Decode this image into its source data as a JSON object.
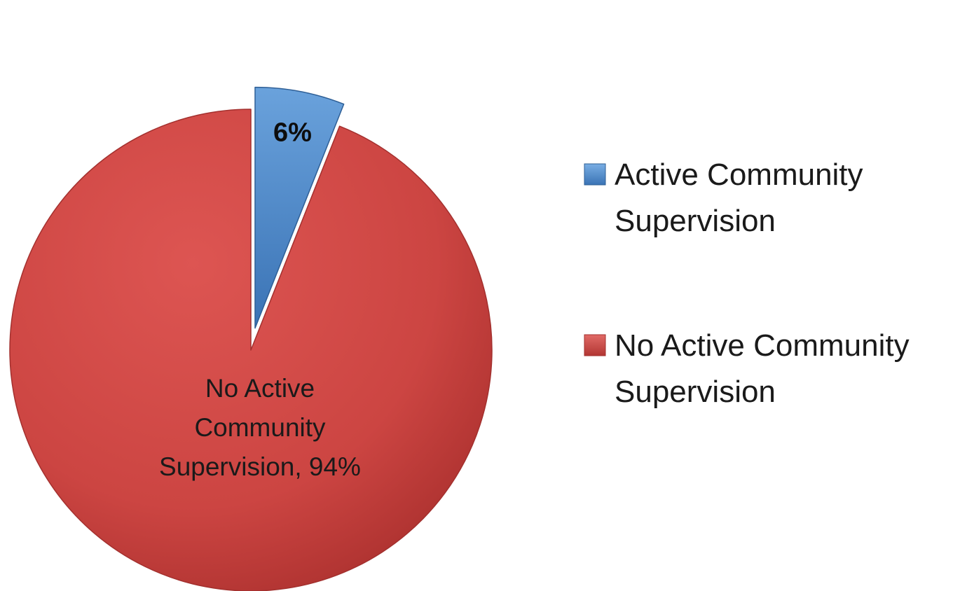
{
  "chart_data": {
    "type": "pie",
    "title": "",
    "slices": [
      {
        "name": "Active Community Supervision",
        "value": 6,
        "label_lines": [
          "6%"
        ],
        "color": "#4a86c8",
        "exploded": true
      },
      {
        "name": "No Active Community Supervision",
        "value": 94,
        "label_lines": [
          "No Active",
          "Community",
          "Supervision, 94%"
        ],
        "color": "#cd4541",
        "exploded": false
      }
    ],
    "legend": {
      "placement": "right",
      "items": [
        {
          "lines": [
            "Active Community",
            "Supervision"
          ],
          "color": "#4a86c8"
        },
        {
          "lines": [
            "No Active Community",
            "Supervision"
          ],
          "color": "#cd4541"
        }
      ]
    }
  }
}
